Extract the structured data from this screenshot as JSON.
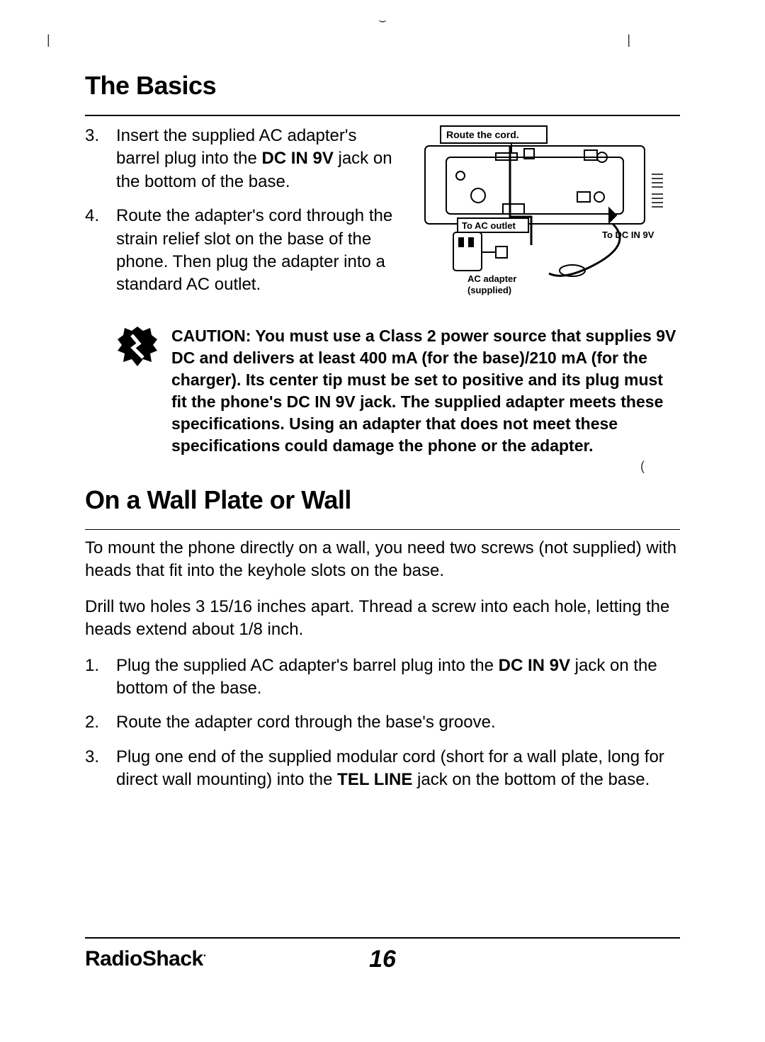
{
  "section1_title": "The Basics",
  "steps_a": [
    {
      "n": "3.",
      "pre": "Insert the supplied AC adapter's barrel plug into the ",
      "bold": "DC IN 9V",
      "post": " jack on the bottom of the base."
    },
    {
      "n": "4.",
      "pre": "Route the adapter's cord through the strain relief slot on the base of the phone. Then plug the adapter into a standard AC outlet.",
      "bold": "",
      "post": ""
    }
  ],
  "diagram_labels": {
    "route": "Route the cord.",
    "to_ac": "To AC outlet",
    "to_dc": "To DC IN 9V",
    "ac_adapter": "AC adapter",
    "supplied": "(supplied)"
  },
  "caution": "CAUTION: You must use a Class 2 power source that supplies 9V DC and delivers at least 400 mA (for the base)/210 mA (for the charger). Its center tip must be set to positive and its plug must fit the phone's DC IN 9V jack. The supplied adapter meets these specifications. Using an adapter that does not meet these specifications could damage the phone or the adapter.",
  "section2_title": "On a Wall Plate or Wall",
  "para1": "To mount the phone directly on a wall, you need two screws (not supplied) with heads that fit into the keyhole slots on the base.",
  "para2": "Drill two holes 3 15/16 inches apart. Thread a screw into each hole, letting the heads extend about 1/8 inch.",
  "steps_b": [
    {
      "n": "1.",
      "pre": "Plug the supplied AC adapter's barrel plug into the ",
      "bold": "DC IN 9V",
      "post": " jack on the bottom of the base."
    },
    {
      "n": "2.",
      "pre": "Route the adapter cord through the base's groove.",
      "bold": "",
      "post": ""
    },
    {
      "n": "3.",
      "pre": "Plug one end of the supplied modular cord (short for a wall plate, long for direct wall mounting) into the ",
      "bold": "TEL LINE",
      "post": " jack on the bottom of the base."
    }
  ],
  "brand": "RadioShack",
  "page_number": "16",
  "colors": {
    "text": "#000000",
    "bg": "#ffffff"
  }
}
